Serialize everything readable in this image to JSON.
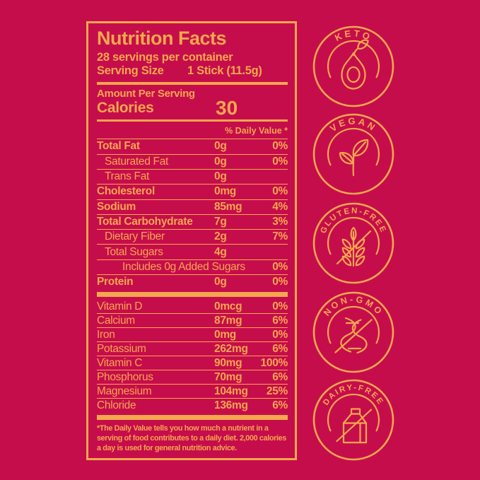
{
  "colors": {
    "background": "#C60D4B",
    "gold": "#F4A74E"
  },
  "nutrition_label": {
    "title": "Nutrition Facts",
    "servings_per_container": "28 servings per container",
    "serving_size_label": "Serving Size",
    "serving_size_value": "1 Stick (11.5g)",
    "amount_per_serving": "Amount Per Serving",
    "calories_label": "Calories",
    "calories_value": "30",
    "daily_value_header": "% Daily Value *",
    "nutrient_rows": [
      {
        "name": "Total Fat",
        "amount": "0g",
        "percent": "0%",
        "style": "bold"
      },
      {
        "name": "Saturated Fat",
        "amount": "0g",
        "percent": "0%",
        "style": "indent"
      },
      {
        "name": "Trans Fat",
        "amount": "0g",
        "percent": "",
        "style": "indent"
      },
      {
        "name": "Cholesterol",
        "amount": "0mg",
        "percent": "0%",
        "style": "bold"
      },
      {
        "name": "Sodium",
        "amount": "85mg",
        "percent": "4%",
        "style": "bold"
      },
      {
        "name": "Total Carbohydrate",
        "amount": "7g",
        "percent": "3%",
        "style": "bold"
      },
      {
        "name": "Dietary Fiber",
        "amount": "2g",
        "percent": "7%",
        "style": "indent"
      },
      {
        "name": "Total Sugars",
        "amount": "4g",
        "percent": "",
        "style": "indent"
      },
      {
        "name": "Includes 0g Added Sugars",
        "amount": "",
        "percent": "0%",
        "style": "indent2"
      },
      {
        "name": "Protein",
        "amount": "0g",
        "percent": "0%",
        "style": "bold"
      }
    ],
    "vitamin_rows": [
      {
        "name": "Vitamin D",
        "amount": "0mcg",
        "percent": "0%"
      },
      {
        "name": "Calcium",
        "amount": "87mg",
        "percent": "6%"
      },
      {
        "name": "Iron",
        "amount": "0mg",
        "percent": "0%"
      },
      {
        "name": "Potassium",
        "amount": "262mg",
        "percent": "6%"
      },
      {
        "name": "Vitamin C",
        "amount": "90mg",
        "percent": "100%"
      },
      {
        "name": "Phosphorus",
        "amount": "70mg",
        "percent": "6%"
      },
      {
        "name": "Magnesium",
        "amount": "104mg",
        "percent": "25%"
      },
      {
        "name": "Chloride",
        "amount": "136mg",
        "percent": "6%"
      }
    ],
    "footnote": "*The Daily Value tells you how much a nutrient in a serving of food contributes to a daily diet. 2,000 calories a day is used for general nutrition advice."
  },
  "badges": [
    {
      "label": "KETO",
      "icon": "avocado-icon"
    },
    {
      "label": "VEGAN",
      "icon": "plant-sprout-icon"
    },
    {
      "label": "GLUTEN-FREE",
      "icon": "crossed-wheat-icon"
    },
    {
      "label": "NON-GMO",
      "icon": "crossed-dna-icon"
    },
    {
      "label": "DAIRY-FREE",
      "icon": "crossed-milk-carton-icon"
    }
  ]
}
